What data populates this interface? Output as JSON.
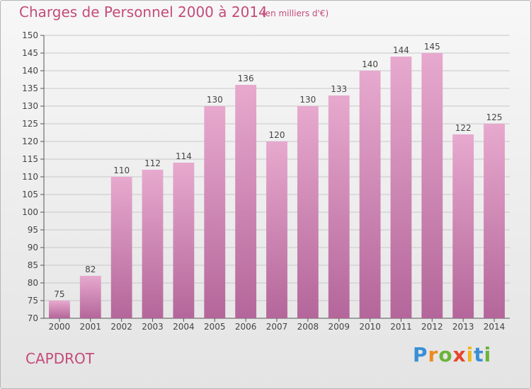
{
  "header": {
    "title": "Charges de Personnel 2000 à 2014",
    "unit": "(en milliers d'€)"
  },
  "footer": {
    "commune": "CAPDROT",
    "logo": "Proxiti"
  },
  "colors": {
    "bar_top": "#e7a9ce",
    "bar_bottom": "#b4669a",
    "title": "#c44b7a",
    "grid": "#c8c8c8"
  },
  "chart_data": {
    "type": "bar",
    "title": "Charges de Personnel 2000 à 2014",
    "subtitle": "(en milliers d'€)",
    "xlabel": "",
    "ylabel": "",
    "categories": [
      "2000",
      "2001",
      "2002",
      "2003",
      "2004",
      "2005",
      "2006",
      "2007",
      "2008",
      "2009",
      "2010",
      "2011",
      "2012",
      "2013",
      "2014"
    ],
    "values": [
      75,
      82,
      110,
      112,
      114,
      130,
      136,
      120,
      130,
      133,
      140,
      144,
      145,
      122,
      125
    ],
    "ylim": [
      70,
      150
    ],
    "yticks": [
      70,
      75,
      80,
      85,
      90,
      95,
      100,
      105,
      110,
      115,
      120,
      125,
      130,
      135,
      140,
      145,
      150
    ],
    "grid": true,
    "legend": "none"
  }
}
